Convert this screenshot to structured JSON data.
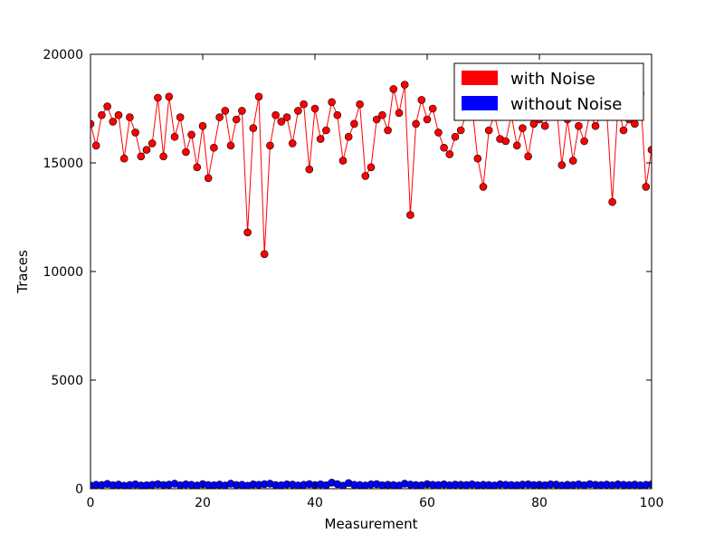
{
  "chart_data": {
    "type": "line",
    "title": "",
    "xlabel": "Measurement",
    "ylabel": "Traces",
    "xlim": [
      0,
      100
    ],
    "ylim": [
      0,
      20000
    ],
    "x_ticks": [
      "0",
      "20",
      "40",
      "60",
      "80",
      "100"
    ],
    "y_ticks": [
      "0",
      "5000",
      "10000",
      "15000",
      "20000"
    ],
    "grid": false,
    "legend_position": "top-right",
    "series": [
      {
        "name": "with Noise",
        "color": "#ff0000",
        "marker": "circle",
        "x": [
          0,
          1,
          2,
          3,
          4,
          5,
          6,
          7,
          8,
          9,
          10,
          11,
          12,
          13,
          14,
          15,
          16,
          17,
          18,
          19,
          20,
          21,
          22,
          23,
          24,
          25,
          26,
          27,
          28,
          29,
          30,
          31,
          32,
          33,
          34,
          35,
          36,
          37,
          38,
          39,
          40,
          41,
          42,
          43,
          44,
          45,
          46,
          47,
          48,
          49,
          50,
          51,
          52,
          53,
          54,
          55,
          56,
          57,
          58,
          59,
          60,
          61,
          62,
          63,
          64,
          65,
          66,
          67,
          68,
          69,
          70,
          71,
          72,
          73,
          74,
          75,
          76,
          77,
          78,
          79,
          80,
          81,
          82,
          83,
          84,
          85,
          86,
          87,
          88,
          89,
          90,
          91,
          92,
          93,
          94,
          95,
          96,
          97,
          98,
          99,
          100
        ],
        "values": [
          16800,
          15800,
          17200,
          17600,
          16900,
          17200,
          15200,
          17100,
          16400,
          15300,
          15600,
          15900,
          18000,
          15300,
          18050,
          16200,
          17100,
          15500,
          16300,
          14800,
          16700,
          14300,
          15700,
          17100,
          17400,
          15800,
          17000,
          17400,
          11800,
          16600,
          18050,
          10800,
          15800,
          17200,
          16900,
          17100,
          15900,
          17400,
          17700,
          14700,
          17500,
          16100,
          16500,
          17800,
          17200,
          15100,
          16200,
          16800,
          17700,
          14400,
          14800,
          17000,
          17200,
          16500,
          18400,
          17300,
          18600,
          12600,
          16800,
          17900,
          17000,
          17500,
          16400,
          15700,
          15400,
          16200,
          16500,
          17300,
          17600,
          15200,
          13900,
          16500,
          17200,
          16100,
          16000,
          17200,
          15800,
          16600,
          15300,
          16800,
          17000,
          16700,
          17500,
          17800,
          14900,
          17000,
          15100,
          16700,
          16000,
          17300,
          16700,
          17200,
          17400,
          13200,
          17600,
          16500,
          17000,
          16800,
          18200,
          13900,
          15600
        ]
      },
      {
        "name": "without Noise",
        "color": "#0000ff",
        "marker": "circle",
        "x": [
          0,
          1,
          2,
          3,
          4,
          5,
          6,
          7,
          8,
          9,
          10,
          11,
          12,
          13,
          14,
          15,
          16,
          17,
          18,
          19,
          20,
          21,
          22,
          23,
          24,
          25,
          26,
          27,
          28,
          29,
          30,
          31,
          32,
          33,
          34,
          35,
          36,
          37,
          38,
          39,
          40,
          41,
          42,
          43,
          44,
          45,
          46,
          47,
          48,
          49,
          50,
          51,
          52,
          53,
          54,
          55,
          56,
          57,
          58,
          59,
          60,
          61,
          62,
          63,
          64,
          65,
          66,
          67,
          68,
          69,
          70,
          71,
          72,
          73,
          74,
          75,
          76,
          77,
          78,
          79,
          80,
          81,
          82,
          83,
          84,
          85,
          86,
          87,
          88,
          89,
          90,
          91,
          92,
          93,
          94,
          95,
          96,
          97,
          98,
          99,
          100
        ],
        "values": [
          150,
          180,
          170,
          220,
          160,
          190,
          140,
          170,
          200,
          150,
          160,
          180,
          210,
          170,
          190,
          230,
          160,
          200,
          180,
          150,
          210,
          170,
          160,
          190,
          150,
          230,
          170,
          180,
          140,
          200,
          180,
          210,
          230,
          170,
          160,
          200,
          190,
          150,
          180,
          210,
          170,
          200,
          160,
          280,
          210,
          140,
          260,
          180,
          170,
          150,
          200,
          210,
          160,
          180,
          170,
          150,
          230,
          190,
          170,
          160,
          210,
          180,
          170,
          200,
          160,
          190,
          180,
          170,
          200,
          160,
          180,
          170,
          150,
          200,
          180,
          170,
          160,
          190,
          200,
          170,
          180,
          160,
          200,
          190,
          150,
          180,
          170,
          200,
          160,
          210,
          180,
          170,
          190,
          160,
          200,
          180,
          170,
          190,
          160,
          180,
          200
        ]
      }
    ]
  }
}
